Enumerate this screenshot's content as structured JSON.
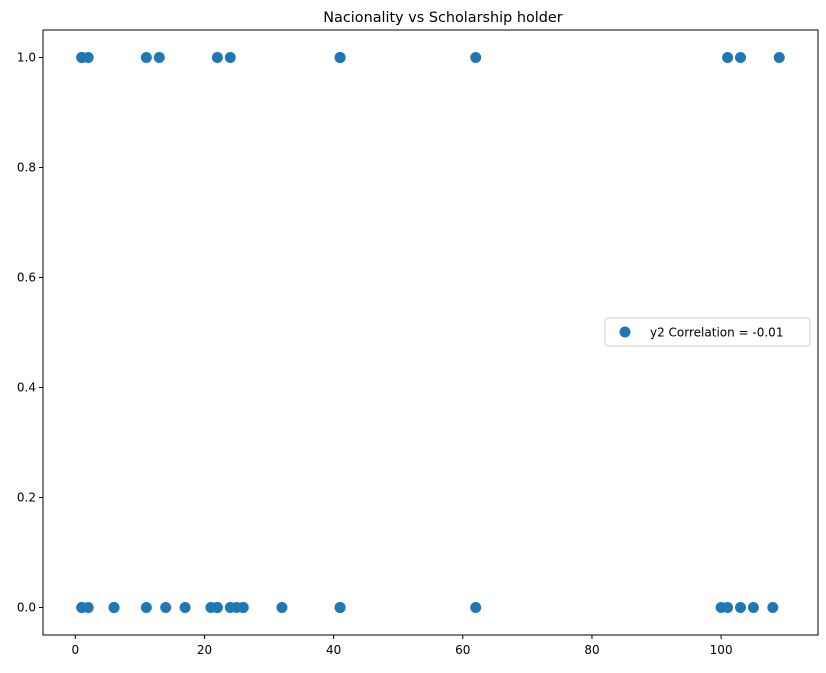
{
  "chart_data": {
    "type": "scatter",
    "title": "Nacionality vs Scholarship holder",
    "xlabel": "",
    "ylabel": "",
    "xlim": [
      -5,
      115
    ],
    "ylim": [
      -0.05,
      1.05
    ],
    "xticks": [
      0,
      20,
      40,
      60,
      80,
      100
    ],
    "yticks": [
      0.0,
      0.2,
      0.4,
      0.6,
      0.8,
      1.0
    ],
    "xtick_labels": [
      "0",
      "20",
      "40",
      "60",
      "80",
      "100"
    ],
    "ytick_labels": [
      "0.0",
      "0.2",
      "0.4",
      "0.6",
      "0.8",
      "1.0"
    ],
    "grid": false,
    "legend_position": "center-right",
    "series": [
      {
        "name": "y2 Correlation = -0.01",
        "color": "#1f77b4",
        "x": [
          1,
          1,
          2,
          11,
          13,
          22,
          24,
          41,
          41,
          62,
          101,
          103,
          109,
          1,
          1,
          2,
          6,
          6,
          11,
          14,
          17,
          21,
          22,
          22,
          24,
          25,
          26,
          26,
          32,
          41,
          41,
          62,
          100,
          101,
          103,
          105,
          108
        ],
        "y": [
          1,
          1,
          1,
          1,
          1,
          1,
          1,
          1,
          1,
          1,
          1,
          1,
          1,
          0,
          0,
          0,
          0,
          0,
          0,
          0,
          0,
          0,
          0,
          0,
          0,
          0,
          0,
          0,
          0,
          0,
          0,
          0,
          0,
          0,
          0,
          0,
          0
        ]
      }
    ]
  }
}
